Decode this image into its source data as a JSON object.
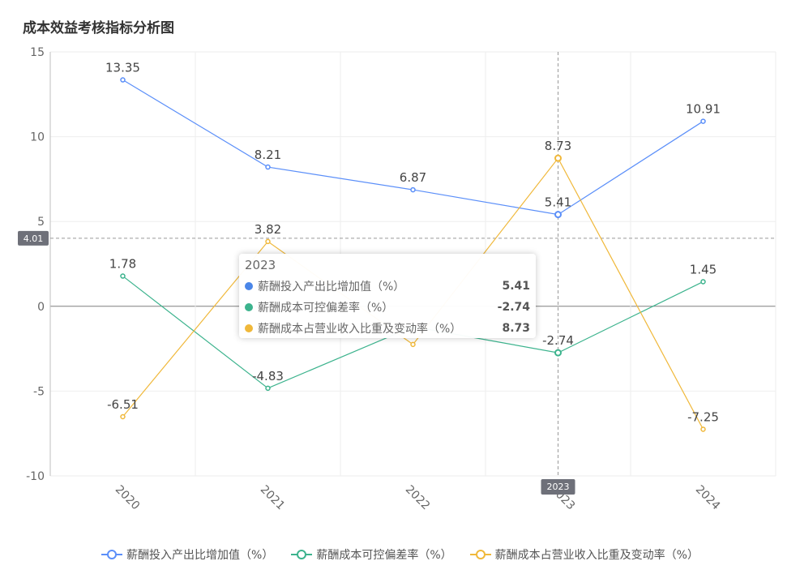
{
  "title": "成本效益考核指标分析图",
  "chart_data": {
    "type": "line",
    "title": "成本效益考核指标分析图",
    "categories": [
      "2020",
      "2021",
      "2022",
      "2023",
      "2024"
    ],
    "ylim": [
      -10,
      15
    ],
    "yticks": [
      15,
      10,
      5,
      0,
      -5,
      -10
    ],
    "grid": true,
    "legend_position": "bottom",
    "series": [
      {
        "name": "薪酬投入产出比增加值（%）",
        "color": "#5b8ff9",
        "values": [
          13.35,
          8.21,
          6.87,
          5.41,
          10.91
        ],
        "labels": [
          "13.35",
          "8.21",
          "6.87",
          "5.41",
          "10.91"
        ]
      },
      {
        "name": "薪酬成本可控偏差率（%）",
        "color": "#3cb38d",
        "values": [
          1.78,
          -4.83,
          -1.2,
          -2.74,
          1.45
        ],
        "labels": [
          "1.78",
          "-4.83",
          "",
          "-2.74",
          "1.45"
        ]
      },
      {
        "name": "薪酬成本占营业收入比重及变动率（%）",
        "color": "#f0b83a",
        "values": [
          -6.51,
          3.82,
          -2.25,
          8.73,
          -7.25
        ],
        "labels": [
          "-6.51",
          "3.82",
          "",
          "8.73",
          "-7.25"
        ]
      }
    ],
    "crosshair": {
      "x_label": "2023",
      "y_label": "4.01",
      "y_value": 4.01
    }
  },
  "tooltip": {
    "title": "2023",
    "rows": [
      {
        "name": "薪酬投入产出比增加值（%）",
        "value": "5.41",
        "color": "#4a86e8"
      },
      {
        "name": "薪酬成本可控偏差率（%）",
        "value": "-2.74",
        "color": "#3cb38d"
      },
      {
        "name": "薪酬成本占营业收入比重及变动率（%）",
        "value": "8.73",
        "color": "#f0b83a"
      }
    ]
  },
  "legend": [
    {
      "name": "薪酬投入产出比增加值（%）",
      "color": "#5b8ff9"
    },
    {
      "name": "薪酬成本可控偏差率（%）",
      "color": "#3cb38d"
    },
    {
      "name": "薪酬成本占营业收入比重及变动率（%）",
      "color": "#f0b83a"
    }
  ]
}
